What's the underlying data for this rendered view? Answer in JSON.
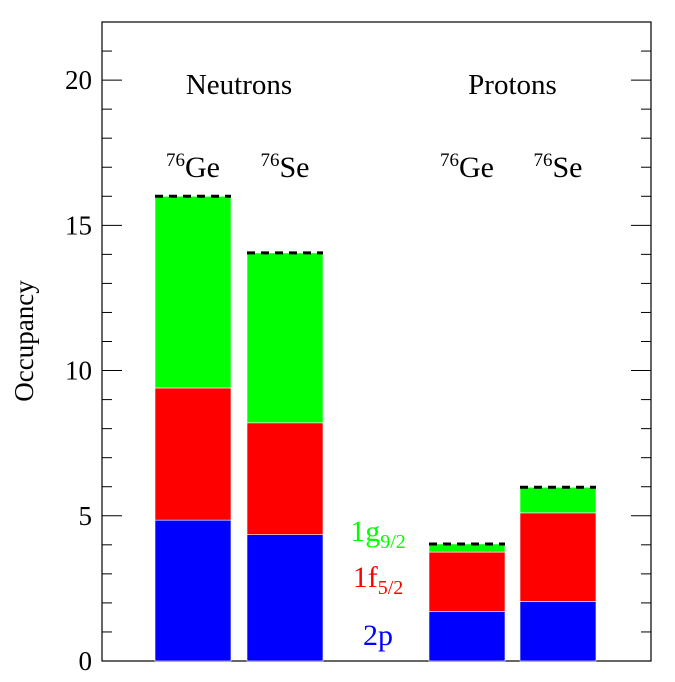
{
  "chart_data": {
    "type": "bar",
    "stacked": true,
    "ylabel": "Occupancy",
    "ylim": [
      0,
      22
    ],
    "yticks": [
      "0",
      "5",
      "10",
      "15",
      "20"
    ],
    "grid": false,
    "groups": [
      {
        "label": "Neutrons",
        "bars": [
          {
            "mass": "76",
            "element": "Ge",
            "segments": [
              4.85,
              4.55,
              6.6
            ],
            "total": 16
          },
          {
            "mass": "76",
            "element": "Se",
            "segments": [
              4.35,
              3.85,
              5.85
            ],
            "total": 14.05
          }
        ]
      },
      {
        "label": "Protons",
        "bars": [
          {
            "mass": "76",
            "element": "Ge",
            "segments": [
              1.7,
              2.05,
              0.28
            ],
            "total": 4.03
          },
          {
            "mass": "76",
            "element": "Se",
            "segments": [
              2.05,
              3.05,
              0.88
            ],
            "total": 5.98
          }
        ]
      }
    ],
    "series": [
      {
        "name": "2p",
        "main": "2p",
        "sub": "",
        "color": "#0000ff"
      },
      {
        "name": "1f5/2",
        "main": "1f",
        "sub": "5/2",
        "color": "#ff0000"
      },
      {
        "name": "1g9/2",
        "main": "1g",
        "sub": "9/2",
        "color": "#00ff00"
      }
    ]
  }
}
